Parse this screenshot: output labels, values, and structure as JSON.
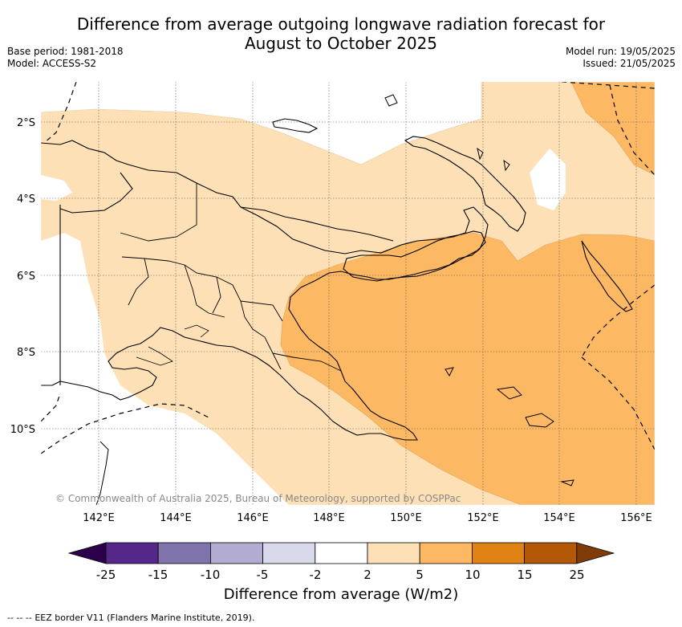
{
  "header": {
    "title_line1": "Difference from average outgoing longwave radiation forecast for",
    "title_line2": "August to October 2025",
    "base_period": "Base period: 1981-2018",
    "model": "Model: ACCESS-S2",
    "model_run": "Model run: 19/05/2025",
    "issued": "Issued: 21/05/2025"
  },
  "map": {
    "lat_labels": [
      "2°S",
      "4°S",
      "6°S",
      "8°S",
      "10°S"
    ],
    "lon_labels": [
      "142°E",
      "144°E",
      "146°E",
      "148°E",
      "150°E",
      "152°E",
      "154°E",
      "156°E"
    ],
    "credit": "© Commonwealth of Australia 2025, Bureau of Meteorology, supported by COSPPac"
  },
  "colorbar": {
    "title": "Difference from average (W/m2)",
    "tick_labels": [
      "-25",
      "-15",
      "-10",
      "-5",
      "-2",
      "2",
      "5",
      "10",
      "15",
      "25"
    ],
    "colors": {
      "below_min": "#2d004b",
      "neg_25_15": "#542788",
      "neg_15_10": "#8073ac",
      "neg_10_5": "#b2abd2",
      "neg_5_2": "#d8daeb",
      "neutral": "#ffffff",
      "pos_2_5": "#fee0b6",
      "pos_5_10": "#fdb863",
      "pos_10_15": "#e08214",
      "pos_15_25": "#b35806",
      "above_max": "#7f3b08"
    }
  },
  "legend_note": {
    "line_sample": "-- -- --",
    "text": "EEZ border V11 (Flanders Marine Institute, 2019)."
  }
}
